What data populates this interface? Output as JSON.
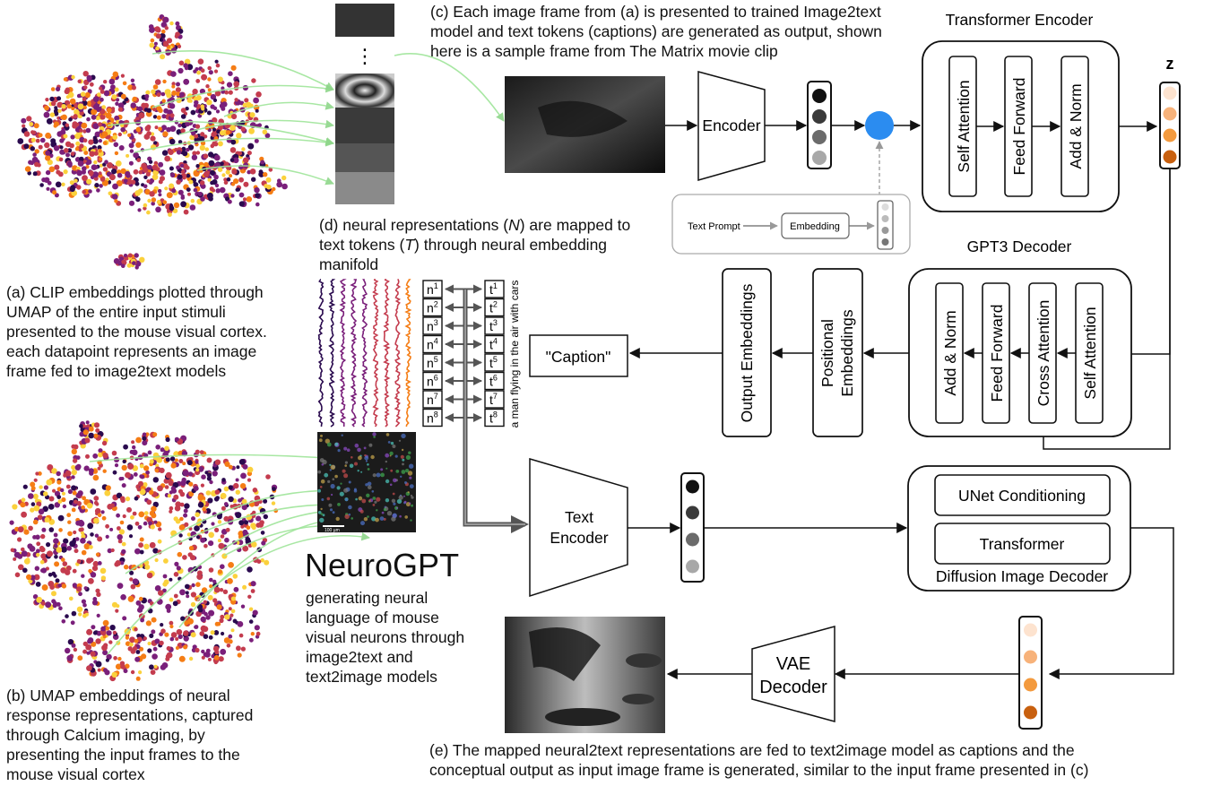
{
  "captions": {
    "a": "(a) CLIP embeddings plotted through\nUMAP of the entire input stimuli\npresented to the mouse visual cortex.\neach datapoint represents an image\nframe fed to image2text models",
    "b": "(b) UMAP embeddings of neural\nresponse representations, captured\nthrough Calcium imaging, by\npresenting the input frames to the\nmouse visual cortex",
    "c": "(c) Each image frame from (a) is presented to trained Image2text\nmodel and text tokens (captions) are generated as output, shown\nhere is a sample frame from The Matrix movie clip",
    "d_prefix": "(d) neural representations (",
    "d_n": "N",
    "d_mid": ") are mapped to",
    "d_line2_prefix": "text tokens (",
    "d_t": "T",
    "d_line2_suffix": ") through neural embedding",
    "d_line3": "manifold",
    "e": "(e) The mapped neural2text representations are fed to text2image model as captions and the\nconceptual output as input image frame is generated, similar to the input frame presented in (c)"
  },
  "brand": {
    "title": "NeuroGPT",
    "subtitle": "generating neural\nlanguage of mouse\nvisual neurons through\nimage2text and\ntext2image models"
  },
  "blocks": {
    "encoder": "Encoder",
    "transformer_encoder": "Transformer Encoder",
    "self_attention": "Self Attention",
    "feed_forward": "Feed Forward",
    "add_norm": "Add & Norm",
    "z": "z",
    "text_prompt": "Text Prompt",
    "embedding": "Embedding",
    "gpt3_decoder": "GPT3 Decoder",
    "cross_attention": "Cross Attention",
    "positional_embeddings_1": "Positional",
    "positional_embeddings_2": "Embeddings",
    "output_embeddings": "Output Embeddings",
    "caption": "\"Caption\"",
    "text_encoder_1": "Text",
    "text_encoder_2": "Encoder",
    "unet_conditioning": "UNet Conditioning",
    "transformer": "Transformer",
    "diffusion_image_decoder": "Diffusion Image Decoder",
    "vae_decoder_1": "VAE",
    "vae_decoder_2": "Decoder",
    "frame_caption": "a man flying in the air with cars",
    "scale_bar": "100 µm",
    "ellipsis": "⋮"
  },
  "tokens": {
    "n": [
      "n",
      "n",
      "n",
      "n",
      "n",
      "n",
      "n",
      "n"
    ],
    "t": [
      "t",
      "t",
      "t",
      "t",
      "t",
      "t",
      "t",
      "t"
    ],
    "idx": [
      "1",
      "2",
      "3",
      "4",
      "5",
      "6",
      "7",
      "8"
    ]
  },
  "colors": {
    "blue_node": "#2b8cf0",
    "green_arrow": "#9fe59a",
    "dark_arrow": "#666666",
    "orange_1": "#fde3cf",
    "orange_2": "#f7b27a",
    "orange_3": "#f39a3e",
    "orange_4": "#c8600f",
    "plasma_1": "#2a0a4e",
    "plasma_2": "#7a1f7a",
    "plasma_3": "#c43c4e",
    "plasma_4": "#f57d15",
    "plasma_5": "#fbd13c"
  }
}
